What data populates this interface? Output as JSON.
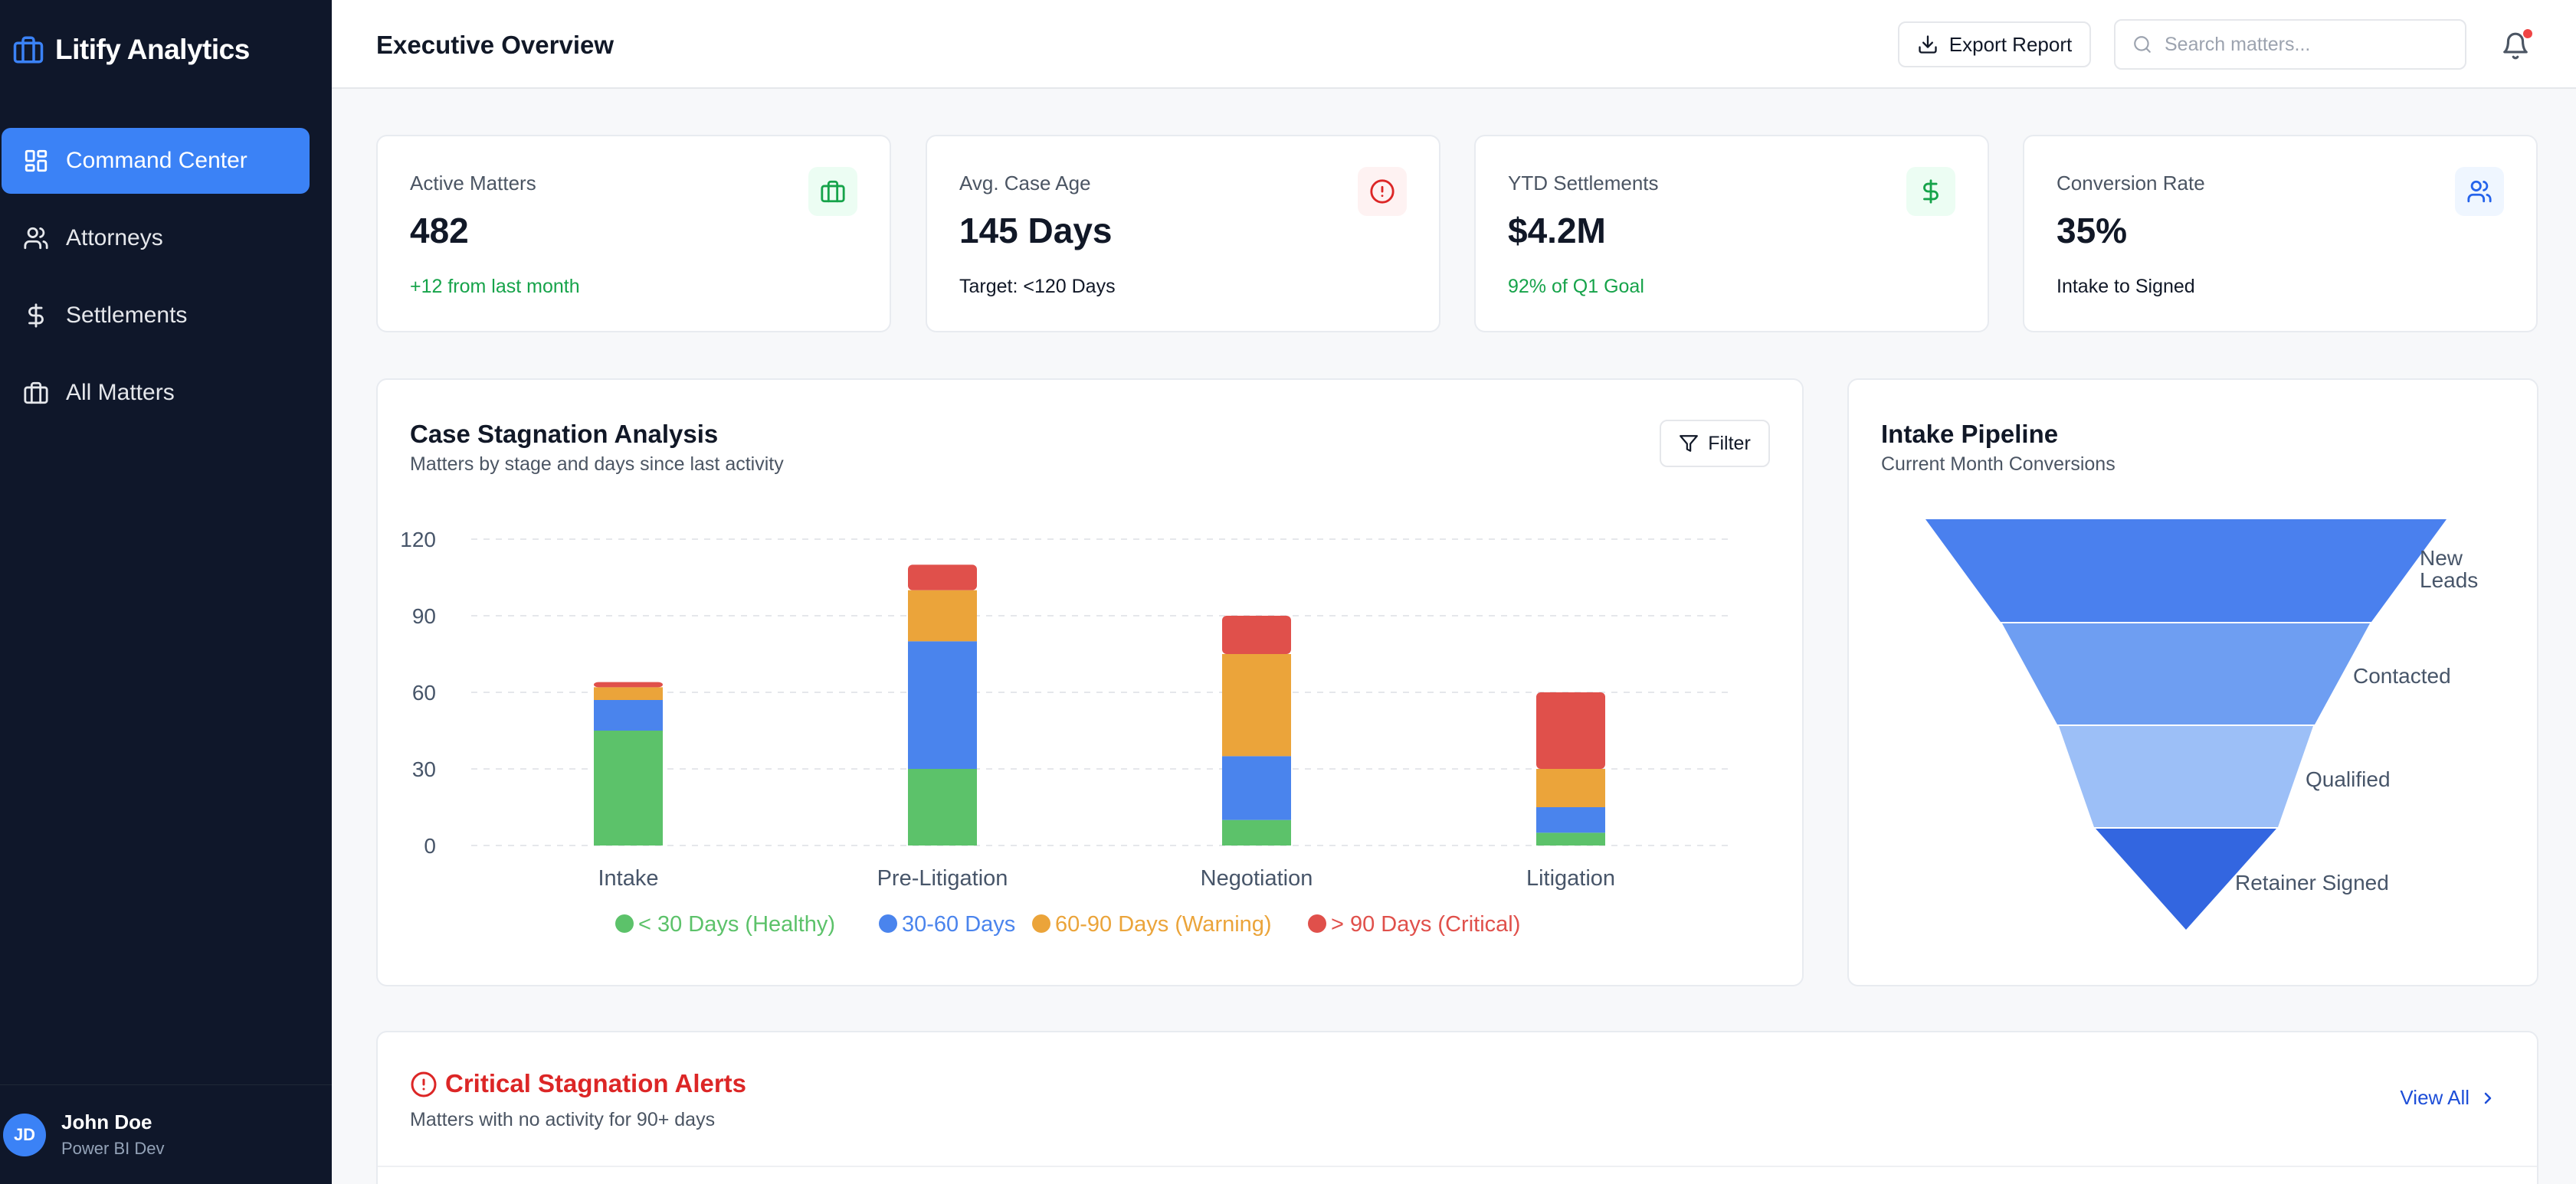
{
  "brand": {
    "title": "Litify Analytics",
    "icon": "briefcase-icon",
    "color": "#3b82f6"
  },
  "sidebar": {
    "items": [
      {
        "label": "Command Center",
        "icon": "dashboard-grid-icon",
        "active": true
      },
      {
        "label": "Attorneys",
        "icon": "users-icon",
        "active": false
      },
      {
        "label": "Settlements",
        "icon": "dollar-icon",
        "active": false
      },
      {
        "label": "All Matters",
        "icon": "briefcase-icon",
        "active": false
      }
    ]
  },
  "user": {
    "initials": "JD",
    "name": "John Doe",
    "role": "Power BI Dev"
  },
  "header": {
    "title": "Executive Overview",
    "export_label": "Export Report",
    "search_placeholder": "Search matters...",
    "search_value": ""
  },
  "kpis": [
    {
      "label": "Active Matters",
      "value": "482",
      "sub": "+12 from last month",
      "sub_color": "#16a34a",
      "icon": "briefcase-icon",
      "icon_color": "#16a34a",
      "icon_bg": "#ecfdf3"
    },
    {
      "label": "Avg. Case Age",
      "value": "145 Days",
      "sub": "Target: <120 Days",
      "sub_color": "#111827",
      "icon": "alert-circle-icon",
      "icon_color": "#dc2626",
      "icon_bg": "#fef2f2"
    },
    {
      "label": "YTD Settlements",
      "value": "$4.2M",
      "sub": "92% of Q1 Goal",
      "sub_color": "#16a34a",
      "icon": "dollar-icon",
      "icon_color": "#16a34a",
      "icon_bg": "#ecfdf3"
    },
    {
      "label": "Conversion Rate",
      "value": "35%",
      "sub": "Intake to Signed",
      "sub_color": "#111827",
      "icon": "users-icon",
      "icon_color": "#2563eb",
      "icon_bg": "#eff6ff"
    }
  ],
  "stagnation": {
    "title": "Case Stagnation Analysis",
    "subtitle": "Matters by stage and days since last activity",
    "filter_label": "Filter"
  },
  "chart_data": {
    "type": "bar",
    "stacked": true,
    "categories": [
      "Intake",
      "Pre-Litigation",
      "Negotiation",
      "Litigation"
    ],
    "series": [
      {
        "name": "< 30 Days (Healthy)",
        "color": "#5cc26a",
        "values": [
          45,
          30,
          10,
          5
        ]
      },
      {
        "name": "30-60 Days",
        "color": "#4a84ed",
        "values": [
          12,
          50,
          25,
          10
        ]
      },
      {
        "name": "60-90 Days (Warning)",
        "color": "#eba43a",
        "values": [
          5,
          20,
          40,
          15
        ]
      },
      {
        "name": "> 90 Days (Critical)",
        "color": "#e0504b",
        "values": [
          2,
          10,
          15,
          30
        ]
      }
    ],
    "yticks": [
      0,
      30,
      60,
      90,
      120
    ],
    "ylim": [
      0,
      120
    ],
    "grid": true,
    "legend": "bottom"
  },
  "funnel": {
    "title": "Intake Pipeline",
    "subtitle": "Current Month Conversions",
    "stages": [
      {
        "label": "New Leads",
        "color": "#4a80ee"
      },
      {
        "label": "Contacted",
        "color": "#6e9ef2"
      },
      {
        "label": "Qualified",
        "color": "#9cbff7"
      },
      {
        "label": "Retainer Signed",
        "color": "#3366e0"
      }
    ]
  },
  "alerts": {
    "title": "Critical Stagnation Alerts",
    "subtitle": "Matters with no activity for 90+ days",
    "view_all": "View All"
  }
}
